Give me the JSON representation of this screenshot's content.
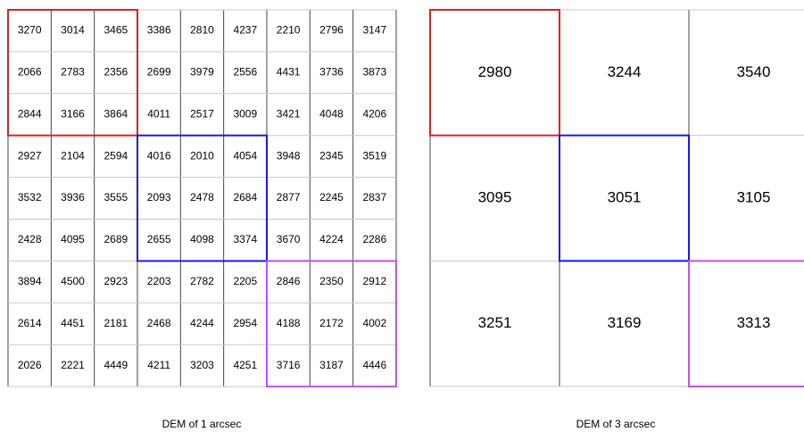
{
  "fine_grid": {
    "caption": "DEM of 1 arcsec",
    "rows": [
      [
        3270,
        3014,
        3465,
        3386,
        2810,
        4237,
        2210,
        2796,
        3147
      ],
      [
        2066,
        2783,
        2356,
        2699,
        3979,
        2556,
        4431,
        3736,
        3873
      ],
      [
        2844,
        3166,
        3864,
        4011,
        2517,
        3009,
        3421,
        4048,
        4206
      ],
      [
        2927,
        2104,
        2594,
        4016,
        2010,
        4054,
        3948,
        2345,
        3519
      ],
      [
        3532,
        3936,
        3555,
        2093,
        2478,
        2684,
        2877,
        2245,
        2837
      ],
      [
        2428,
        4095,
        2689,
        2655,
        4098,
        3374,
        3670,
        4224,
        2286
      ],
      [
        3894,
        4500,
        2923,
        2203,
        2782,
        2205,
        2846,
        2350,
        2912
      ],
      [
        2614,
        4451,
        2181,
        2468,
        4244,
        2954,
        4188,
        2172,
        4002
      ],
      [
        2026,
        2221,
        4449,
        4211,
        3203,
        4251,
        3716,
        3187,
        4446
      ]
    ]
  },
  "coarse_grid": {
    "caption": "DEM of 3 arcsec",
    "rows": [
      [
        2980,
        3244,
        3540
      ],
      [
        3095,
        3051,
        3105
      ],
      [
        3251,
        3169,
        3313
      ]
    ]
  }
}
